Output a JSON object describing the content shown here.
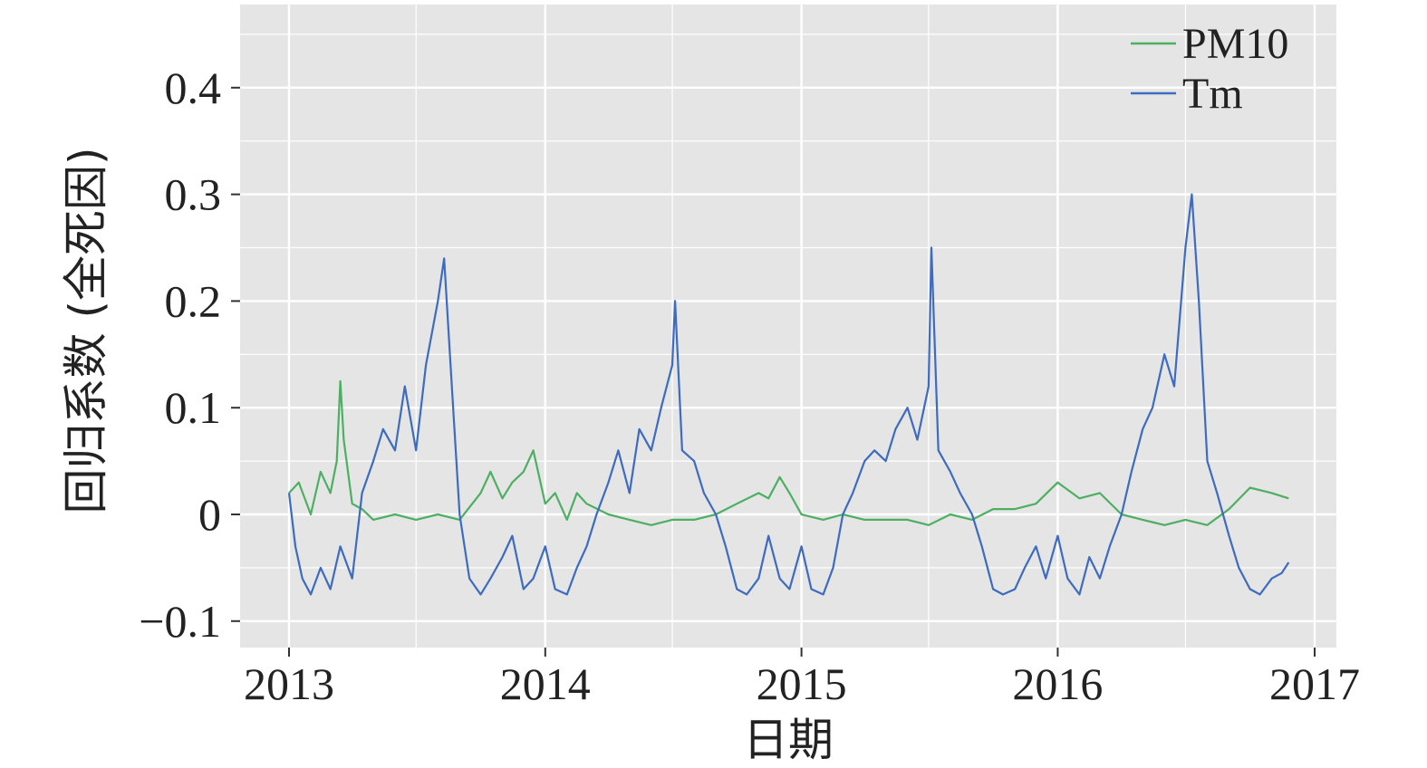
{
  "chart_data": {
    "type": "line",
    "xlabel": "日期",
    "ylabel": "回归系数 (全死因)",
    "x_ticks": [
      "2013",
      "2014",
      "2015",
      "2016",
      "2017"
    ],
    "y_ticks": [
      "−0.1",
      "0",
      "0.1",
      "0.2",
      "0.3",
      "0.4"
    ],
    "y_tick_values": [
      -0.1,
      0,
      0.1,
      0.2,
      0.3,
      0.4
    ],
    "xlim": [
      "2013-01-01",
      "2017-01-01"
    ],
    "ylim": [
      -0.125,
      0.475
    ],
    "grid": true,
    "legend_position": "top-right",
    "colors": {
      "panel": "#e5e5e5",
      "grid": "#ffffff",
      "PM10": "#4caf62",
      "Tm": "#3d6bbf"
    },
    "series": [
      {
        "name": "PM10",
        "x": [
          "2013-01-01",
          "2013-01-15",
          "2013-02-01",
          "2013-02-15",
          "2013-03-01",
          "2013-03-10",
          "2013-03-15",
          "2013-03-20",
          "2013-04-01",
          "2013-04-15",
          "2013-05-01",
          "2013-06-01",
          "2013-07-01",
          "2013-08-01",
          "2013-09-01",
          "2013-10-01",
          "2013-10-15",
          "2013-11-01",
          "2013-11-15",
          "2013-12-01",
          "2013-12-15",
          "2014-01-01",
          "2014-01-15",
          "2014-02-01",
          "2014-02-15",
          "2014-03-01",
          "2014-04-01",
          "2014-05-01",
          "2014-06-01",
          "2014-07-01",
          "2014-08-01",
          "2014-09-01",
          "2014-10-01",
          "2014-11-01",
          "2014-11-15",
          "2014-12-01",
          "2014-12-15",
          "2015-01-01",
          "2015-02-01",
          "2015-03-01",
          "2015-04-01",
          "2015-05-01",
          "2015-06-01",
          "2015-07-01",
          "2015-08-01",
          "2015-09-01",
          "2015-10-01",
          "2015-11-01",
          "2015-12-01",
          "2016-01-01",
          "2016-02-01",
          "2016-03-01",
          "2016-04-01",
          "2016-05-01",
          "2016-06-01",
          "2016-07-01",
          "2016-08-01",
          "2016-09-01",
          "2016-10-01",
          "2016-11-01",
          "2016-11-25"
        ],
        "y": [
          0.02,
          0.03,
          0.0,
          0.04,
          0.02,
          0.05,
          0.125,
          0.07,
          0.01,
          0.005,
          -0.005,
          0.0,
          -0.005,
          0.0,
          -0.005,
          0.02,
          0.04,
          0.015,
          0.03,
          0.04,
          0.06,
          0.01,
          0.02,
          -0.005,
          0.02,
          0.01,
          0.0,
          -0.005,
          -0.01,
          -0.005,
          -0.005,
          0.0,
          0.01,
          0.02,
          0.015,
          0.035,
          0.02,
          0.0,
          -0.005,
          0.0,
          -0.005,
          -0.005,
          -0.005,
          -0.01,
          0.0,
          -0.005,
          0.005,
          0.005,
          0.01,
          0.03,
          0.015,
          0.02,
          0.0,
          -0.005,
          -0.01,
          -0.005,
          -0.01,
          0.005,
          0.025,
          0.02,
          0.015
        ]
      },
      {
        "name": "Tm",
        "x": [
          "2013-01-01",
          "2013-01-10",
          "2013-01-20",
          "2013-02-01",
          "2013-02-15",
          "2013-03-01",
          "2013-03-15",
          "2013-04-01",
          "2013-04-15",
          "2013-05-01",
          "2013-05-15",
          "2013-06-01",
          "2013-06-15",
          "2013-07-01",
          "2013-07-15",
          "2013-08-01",
          "2013-08-10",
          "2013-08-20",
          "2013-09-01",
          "2013-09-15",
          "2013-10-01",
          "2013-10-15",
          "2013-11-01",
          "2013-11-15",
          "2013-12-01",
          "2013-12-15",
          "2014-01-01",
          "2014-01-15",
          "2014-02-01",
          "2014-02-15",
          "2014-03-01",
          "2014-03-15",
          "2014-04-01",
          "2014-04-15",
          "2014-05-01",
          "2014-05-15",
          "2014-06-01",
          "2014-06-15",
          "2014-07-01",
          "2014-07-05",
          "2014-07-15",
          "2014-08-01",
          "2014-08-15",
          "2014-09-01",
          "2014-09-15",
          "2014-10-01",
          "2014-10-15",
          "2014-11-01",
          "2014-11-15",
          "2014-12-01",
          "2014-12-15",
          "2015-01-01",
          "2015-01-15",
          "2015-02-01",
          "2015-02-15",
          "2015-03-01",
          "2015-03-15",
          "2015-04-01",
          "2015-04-15",
          "2015-05-01",
          "2015-05-15",
          "2015-06-01",
          "2015-06-15",
          "2015-07-01",
          "2015-07-05",
          "2015-07-15",
          "2015-08-01",
          "2015-08-15",
          "2015-09-01",
          "2015-09-15",
          "2015-10-01",
          "2015-10-15",
          "2015-11-01",
          "2015-11-15",
          "2015-12-01",
          "2015-12-15",
          "2016-01-01",
          "2016-01-15",
          "2016-02-01",
          "2016-02-15",
          "2016-03-01",
          "2016-03-15",
          "2016-04-01",
          "2016-04-15",
          "2016-05-01",
          "2016-05-15",
          "2016-06-01",
          "2016-06-15",
          "2016-07-01",
          "2016-07-10",
          "2016-07-20",
          "2016-08-01",
          "2016-08-15",
          "2016-09-01",
          "2016-09-15",
          "2016-10-01",
          "2016-10-15",
          "2016-11-01",
          "2016-11-15",
          "2016-11-25"
        ],
        "y": [
          0.02,
          -0.03,
          -0.06,
          -0.075,
          -0.05,
          -0.07,
          -0.03,
          -0.06,
          0.02,
          0.05,
          0.08,
          0.06,
          0.12,
          0.06,
          0.14,
          0.2,
          0.24,
          0.13,
          0.0,
          -0.06,
          -0.075,
          -0.06,
          -0.04,
          -0.02,
          -0.07,
          -0.06,
          -0.03,
          -0.07,
          -0.075,
          -0.05,
          -0.03,
          0.0,
          0.03,
          0.06,
          0.02,
          0.08,
          0.06,
          0.1,
          0.14,
          0.2,
          0.06,
          0.05,
          0.02,
          0.0,
          -0.03,
          -0.07,
          -0.075,
          -0.06,
          -0.02,
          -0.06,
          -0.07,
          -0.03,
          -0.07,
          -0.075,
          -0.05,
          0.0,
          0.02,
          0.05,
          0.06,
          0.05,
          0.08,
          0.1,
          0.07,
          0.12,
          0.25,
          0.06,
          0.04,
          0.02,
          0.0,
          -0.03,
          -0.07,
          -0.075,
          -0.07,
          -0.05,
          -0.03,
          -0.06,
          -0.02,
          -0.06,
          -0.075,
          -0.04,
          -0.06,
          -0.03,
          0.0,
          0.04,
          0.08,
          0.1,
          0.15,
          0.12,
          0.25,
          0.3,
          0.2,
          0.05,
          0.02,
          -0.02,
          -0.05,
          -0.07,
          -0.075,
          -0.06,
          -0.055,
          -0.045
        ]
      }
    ]
  }
}
